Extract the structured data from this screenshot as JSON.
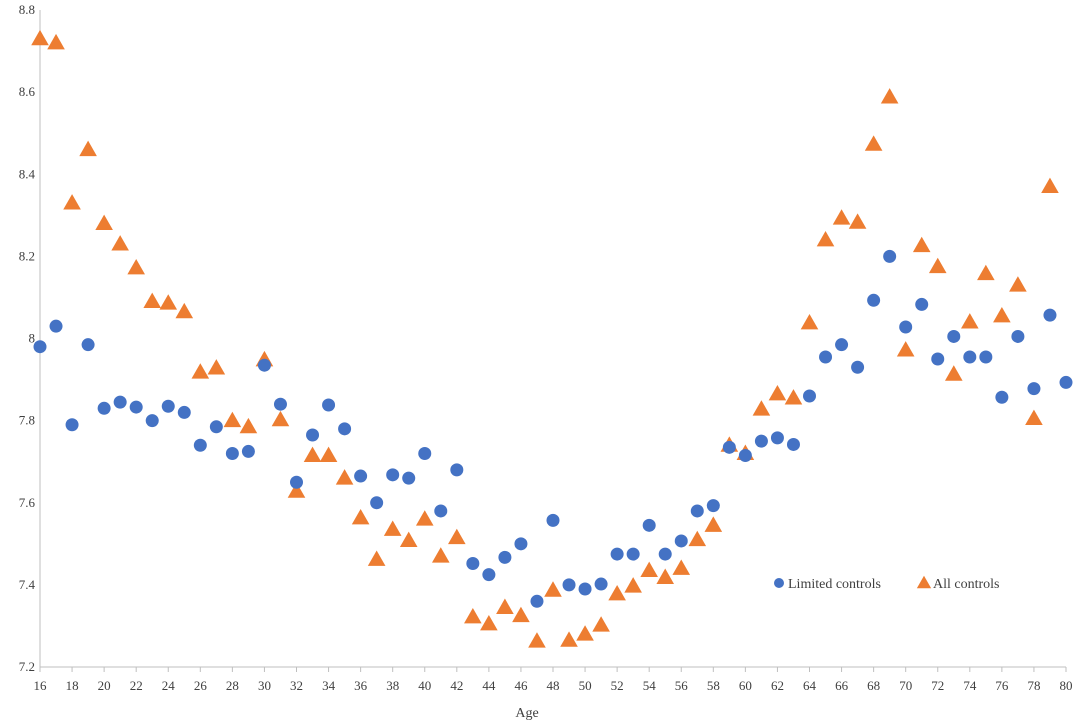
{
  "chart_data": {
    "type": "scatter",
    "title": "",
    "xlabel": "Age",
    "ylabel": "",
    "xlim": [
      16,
      80
    ],
    "ylim": [
      7.2,
      8.8
    ],
    "x_ticks": [
      16,
      18,
      20,
      22,
      24,
      26,
      28,
      30,
      32,
      34,
      36,
      38,
      40,
      42,
      44,
      46,
      48,
      50,
      52,
      54,
      56,
      58,
      60,
      62,
      64,
      66,
      68,
      70,
      72,
      74,
      76,
      78,
      80
    ],
    "y_ticks": [
      7.2,
      7.4,
      7.6,
      7.8,
      8,
      8.2,
      8.4,
      8.6,
      8.8
    ],
    "grid": false,
    "legend_position": "bottom-right",
    "series": [
      {
        "name": "Limited controls",
        "marker": "circle",
        "color": "#4472C4",
        "x": [
          16,
          17,
          18,
          19,
          20,
          21,
          22,
          23,
          24,
          25,
          26,
          27,
          28,
          29,
          30,
          31,
          32,
          33,
          34,
          35,
          36,
          37,
          38,
          39,
          40,
          41,
          42,
          43,
          44,
          45,
          46,
          47,
          48,
          49,
          50,
          51,
          52,
          53,
          54,
          55,
          56,
          57,
          58,
          59,
          60,
          61,
          62,
          63,
          64,
          65,
          66,
          67,
          68,
          69,
          70,
          71,
          72,
          73,
          74,
          75,
          76,
          77,
          78,
          79,
          80
        ],
        "y": [
          7.98,
          8.03,
          7.79,
          7.985,
          7.83,
          7.845,
          7.833,
          7.8,
          7.835,
          7.82,
          7.74,
          7.785,
          7.72,
          7.725,
          7.935,
          7.84,
          7.65,
          7.765,
          7.838,
          7.78,
          7.665,
          7.6,
          7.668,
          7.66,
          7.72,
          7.58,
          7.68,
          7.452,
          7.425,
          7.467,
          7.5,
          7.36,
          7.557,
          7.4,
          7.39,
          7.402,
          7.475,
          7.475,
          7.545,
          7.475,
          7.507,
          7.58,
          7.593,
          7.735,
          7.715,
          7.75,
          7.758,
          7.742,
          7.86,
          7.955,
          7.985,
          7.93,
          8.093,
          8.2,
          8.028,
          8.083,
          7.95,
          8.005,
          7.955,
          7.955,
          7.857,
          8.005,
          7.878,
          8.057,
          7.893
        ]
      },
      {
        "name": "All controls",
        "marker": "triangle",
        "color": "#ED7D31",
        "x": [
          16,
          17,
          18,
          19,
          20,
          21,
          22,
          23,
          24,
          25,
          26,
          27,
          28,
          29,
          30,
          31,
          32,
          33,
          34,
          35,
          36,
          37,
          38,
          39,
          40,
          41,
          42,
          43,
          44,
          45,
          46,
          47,
          48,
          49,
          50,
          51,
          52,
          53,
          54,
          55,
          56,
          57,
          58,
          59,
          60,
          61,
          62,
          63,
          64,
          65,
          66,
          67,
          68,
          69,
          70,
          71,
          72,
          73,
          74,
          75,
          76,
          77,
          78,
          79
        ],
        "y": [
          8.73,
          8.72,
          8.33,
          8.46,
          8.28,
          8.23,
          8.172,
          8.09,
          8.086,
          8.065,
          7.918,
          7.928,
          7.8,
          7.785,
          7.948,
          7.802,
          7.628,
          7.715,
          7.715,
          7.66,
          7.563,
          7.462,
          7.535,
          7.508,
          7.56,
          7.47,
          7.515,
          7.322,
          7.305,
          7.345,
          7.325,
          7.263,
          7.387,
          7.265,
          7.28,
          7.302,
          7.378,
          7.397,
          7.435,
          7.418,
          7.44,
          7.51,
          7.545,
          7.74,
          7.72,
          7.828,
          7.865,
          7.855,
          8.038,
          8.24,
          8.293,
          8.283,
          8.473,
          8.588,
          7.972,
          8.226,
          8.175,
          7.913,
          8.04,
          8.158,
          8.055,
          8.13,
          7.805,
          8.37
        ]
      }
    ]
  }
}
